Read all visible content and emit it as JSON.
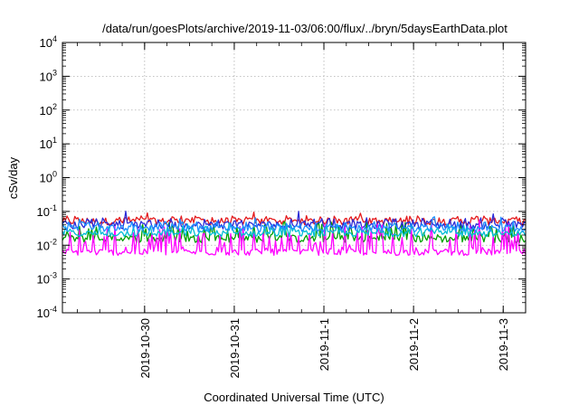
{
  "chart_data": {
    "type": "line",
    "title": "/data/run/goesPlots/archive/2019-11-03/06:00/flux/../bryn/5daysEarthData.plot",
    "xlabel": "Coordinated Universal Time (UTC)",
    "ylabel": "cSv/day",
    "y_scale": "log",
    "ylim": [
      0.0001,
      10000
    ],
    "y_ticks": [
      {
        "value": 0.0001,
        "base": "10",
        "exp": "-4"
      },
      {
        "value": 0.001,
        "base": "10",
        "exp": "-3"
      },
      {
        "value": 0.01,
        "base": "10",
        "exp": "-2"
      },
      {
        "value": 0.1,
        "base": "10",
        "exp": "-1"
      },
      {
        "value": 1,
        "base": "10",
        "exp": "0"
      },
      {
        "value": 10,
        "base": "10",
        "exp": "1"
      },
      {
        "value": 100,
        "base": "10",
        "exp": "2"
      },
      {
        "value": 1000,
        "base": "10",
        "exp": "3"
      },
      {
        "value": 10000,
        "base": "10",
        "exp": "4"
      }
    ],
    "xlim": [
      "2019-10-29T02:00",
      "2019-11-03T06:00"
    ],
    "x_ticks": [
      {
        "value": "2019-10-30T00:00",
        "label": "2019-10-30"
      },
      {
        "value": "2019-10-31T00:00",
        "label": "2019-10-31"
      },
      {
        "value": "2019-11-01T00:00",
        "label": "2019-11-1"
      },
      {
        "value": "2019-11-02T00:00",
        "label": "2019-11-2"
      },
      {
        "value": "2019-11-03T00:00",
        "label": "2019-11-3"
      }
    ],
    "grid": true,
    "series": [
      {
        "color": "#e41a1c",
        "base": 0.058,
        "min": 0.04,
        "max": 0.075,
        "spike_max": 0.1
      },
      {
        "color": "#00a000",
        "base": 0.018,
        "min": 0.012,
        "max": 0.05,
        "spike_max": 0.06
      },
      {
        "color": "#2b2bd8",
        "base": 0.045,
        "min": 0.03,
        "max": 0.065,
        "spike_max": 0.12
      },
      {
        "color": "#ff00ff",
        "base": 0.007,
        "min": 0.005,
        "max": 0.045,
        "spike_max": 0.06
      },
      {
        "color": "#00bcd4",
        "base": 0.025,
        "min": 0.018,
        "max": 0.04,
        "spike_max": 0.05
      },
      {
        "color": "#1e90ff",
        "base": 0.035,
        "min": 0.025,
        "max": 0.05,
        "spike_max": 0.07
      }
    ]
  }
}
